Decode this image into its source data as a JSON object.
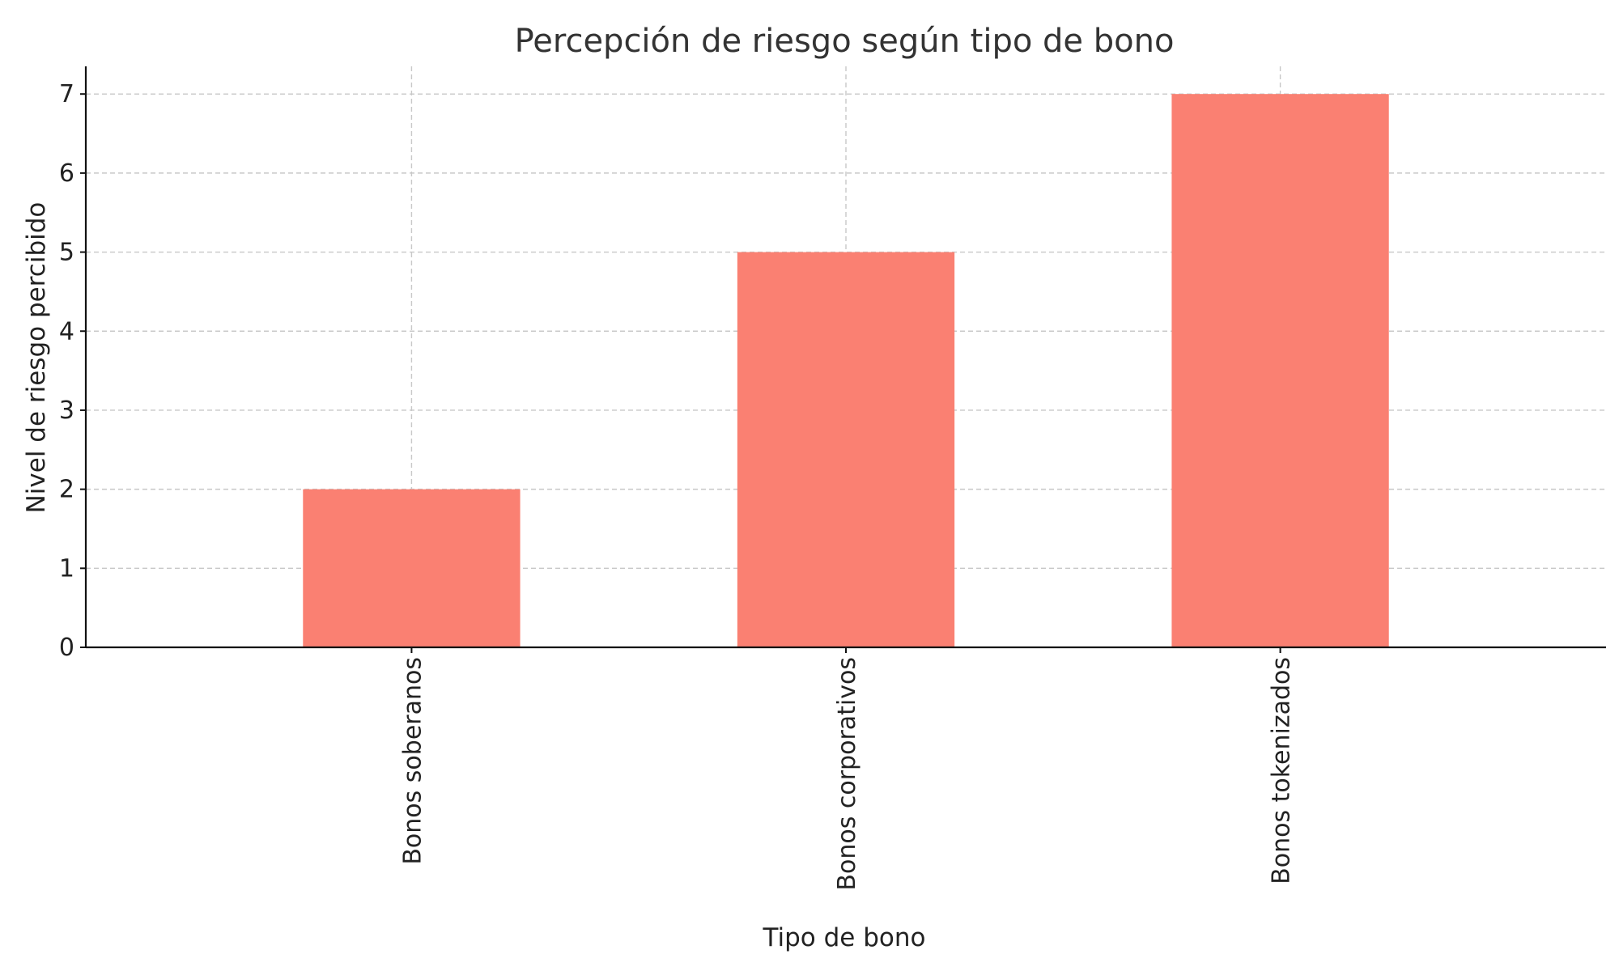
{
  "chart_data": {
    "type": "bar",
    "title": "Percepción de riesgo según tipo de bono",
    "xlabel": "Tipo de bono",
    "ylabel": "Nivel de riesgo percibido",
    "categories": [
      "Bonos soberanos",
      "Bonos corporativos",
      "Bonos tokenizados"
    ],
    "values": [
      2,
      5,
      7
    ],
    "ylim": [
      0,
      7.35
    ],
    "yticks": [
      "0",
      "1",
      "2",
      "3",
      "4",
      "5",
      "6",
      "7"
    ],
    "grid": true,
    "bar_color": "#FA8072",
    "category_label_rotation": "vertical"
  }
}
